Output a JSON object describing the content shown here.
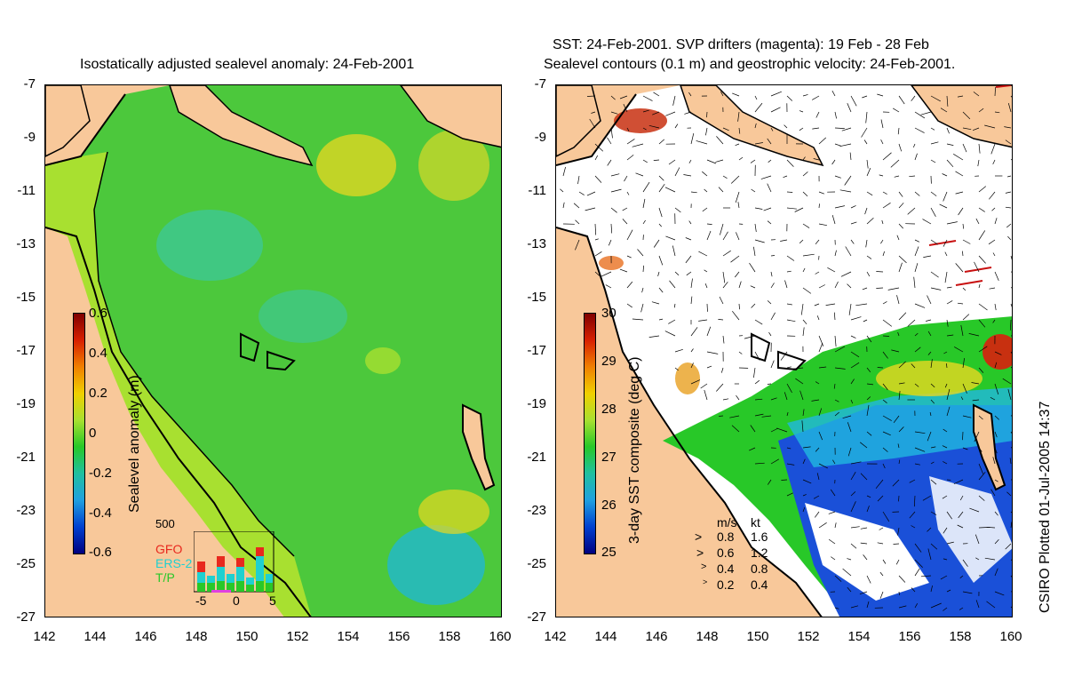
{
  "left_panel": {
    "title": "Isostatically adjusted sealevel anomaly: 24-Feb-2001",
    "colorbar": {
      "label": "Sealevel anomaly (m)",
      "ticks": [
        "0.6",
        "0.4",
        "0.2",
        "0",
        "-0.2",
        "-0.4",
        "-0.6"
      ]
    },
    "inset": {
      "ymax_label": "500",
      "series": [
        "GFO",
        "ERS-2",
        "T/P"
      ],
      "series_colors": [
        "#e8281e",
        "#1fd0d0",
        "#28c828"
      ],
      "x_ticks": [
        "-5",
        "0",
        "5"
      ]
    }
  },
  "right_panel": {
    "title_line1": "SST: 24-Feb-2001. SVP drifters (magenta): 19 Feb - 28 Feb",
    "title_line2": "Sealevel contours (0.1 m) and geostrophic velocity: 24-Feb-2001.",
    "colorbar": {
      "label": "3-day SST composite (deg C)",
      "ticks": [
        "30",
        "29",
        "28",
        "27",
        "26",
        "25"
      ]
    },
    "velocity_legend": {
      "header_ms": "m/s",
      "header_kt": "kt",
      "rows": [
        {
          "ms": "0.8",
          "kt": "1.6"
        },
        {
          "ms": "0.6",
          "kt": "1.2"
        },
        {
          "ms": "0.4",
          "kt": "0.8"
        },
        {
          "ms": "0.2",
          "kt": "0.4"
        }
      ]
    }
  },
  "axes": {
    "lat_ticks": [
      "-7",
      "-9",
      "-11",
      "-13",
      "-15",
      "-17",
      "-19",
      "-21",
      "-23",
      "-25",
      "-27"
    ],
    "lon_ticks": [
      "142",
      "144",
      "146",
      "148",
      "150",
      "152",
      "154",
      "156",
      "158",
      "160"
    ]
  },
  "footer": {
    "plotted": "CSIRO Plotted 01-Jul-2005 14:37"
  },
  "colors": {
    "land": "#f8c89a",
    "ocean_green": "#4cc83c",
    "ocean_light": "#a8e030",
    "ocean_cyan": "#3cc8a0",
    "warm_yellow": "#e8d820",
    "sst_blue": "#1a50d8",
    "sst_cyan": "#20b8e0"
  }
}
